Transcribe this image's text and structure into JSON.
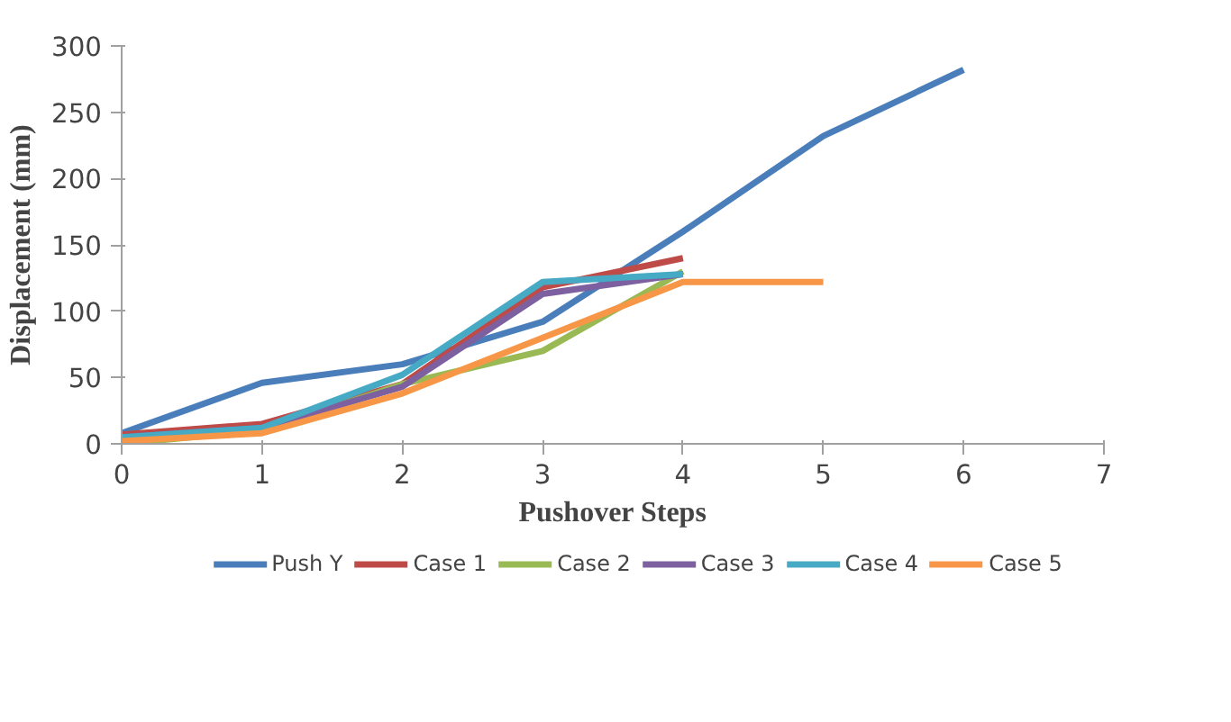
{
  "chart_data": {
    "type": "line",
    "xlabel": "Pushover Steps",
    "ylabel": "Displacement (mm)",
    "xlim": [
      0,
      7
    ],
    "xticks": [
      0,
      1,
      2,
      3,
      4,
      5,
      6,
      7
    ],
    "ylim": [
      0,
      300
    ],
    "yticks": [
      0,
      50,
      100,
      150,
      200,
      250,
      300
    ],
    "grid": false,
    "legend": "bottom",
    "marker": "none",
    "line_style": "solid",
    "series": [
      {
        "name": "Push Y",
        "color": "#4a7ebb",
        "x": [
          0,
          1,
          2,
          3,
          4,
          5,
          6
        ],
        "values": [
          8,
          46,
          60,
          92,
          160,
          232,
          282
        ]
      },
      {
        "name": "Case 1",
        "color": "#be4b48",
        "x": [
          0,
          1,
          2,
          3,
          4
        ],
        "values": [
          7,
          15,
          45,
          118,
          140
        ]
      },
      {
        "name": "Case 2",
        "color": "#98b954",
        "x": [
          0,
          1,
          2,
          3,
          4
        ],
        "values": [
          0,
          10,
          45,
          70,
          130
        ]
      },
      {
        "name": "Case 3",
        "color": "#7d60a0",
        "x": [
          0,
          1,
          2,
          3,
          4
        ],
        "values": [
          5,
          12,
          43,
          113,
          128
        ]
      },
      {
        "name": "Case 4",
        "color": "#46aac5",
        "x": [
          0,
          1,
          2,
          3,
          4
        ],
        "values": [
          5,
          12,
          52,
          122,
          128
        ]
      },
      {
        "name": "Case 5",
        "color": "#f79646",
        "x": [
          0,
          1,
          2,
          3,
          4,
          5
        ],
        "values": [
          2,
          8,
          38,
          80,
          122,
          122
        ]
      }
    ]
  }
}
